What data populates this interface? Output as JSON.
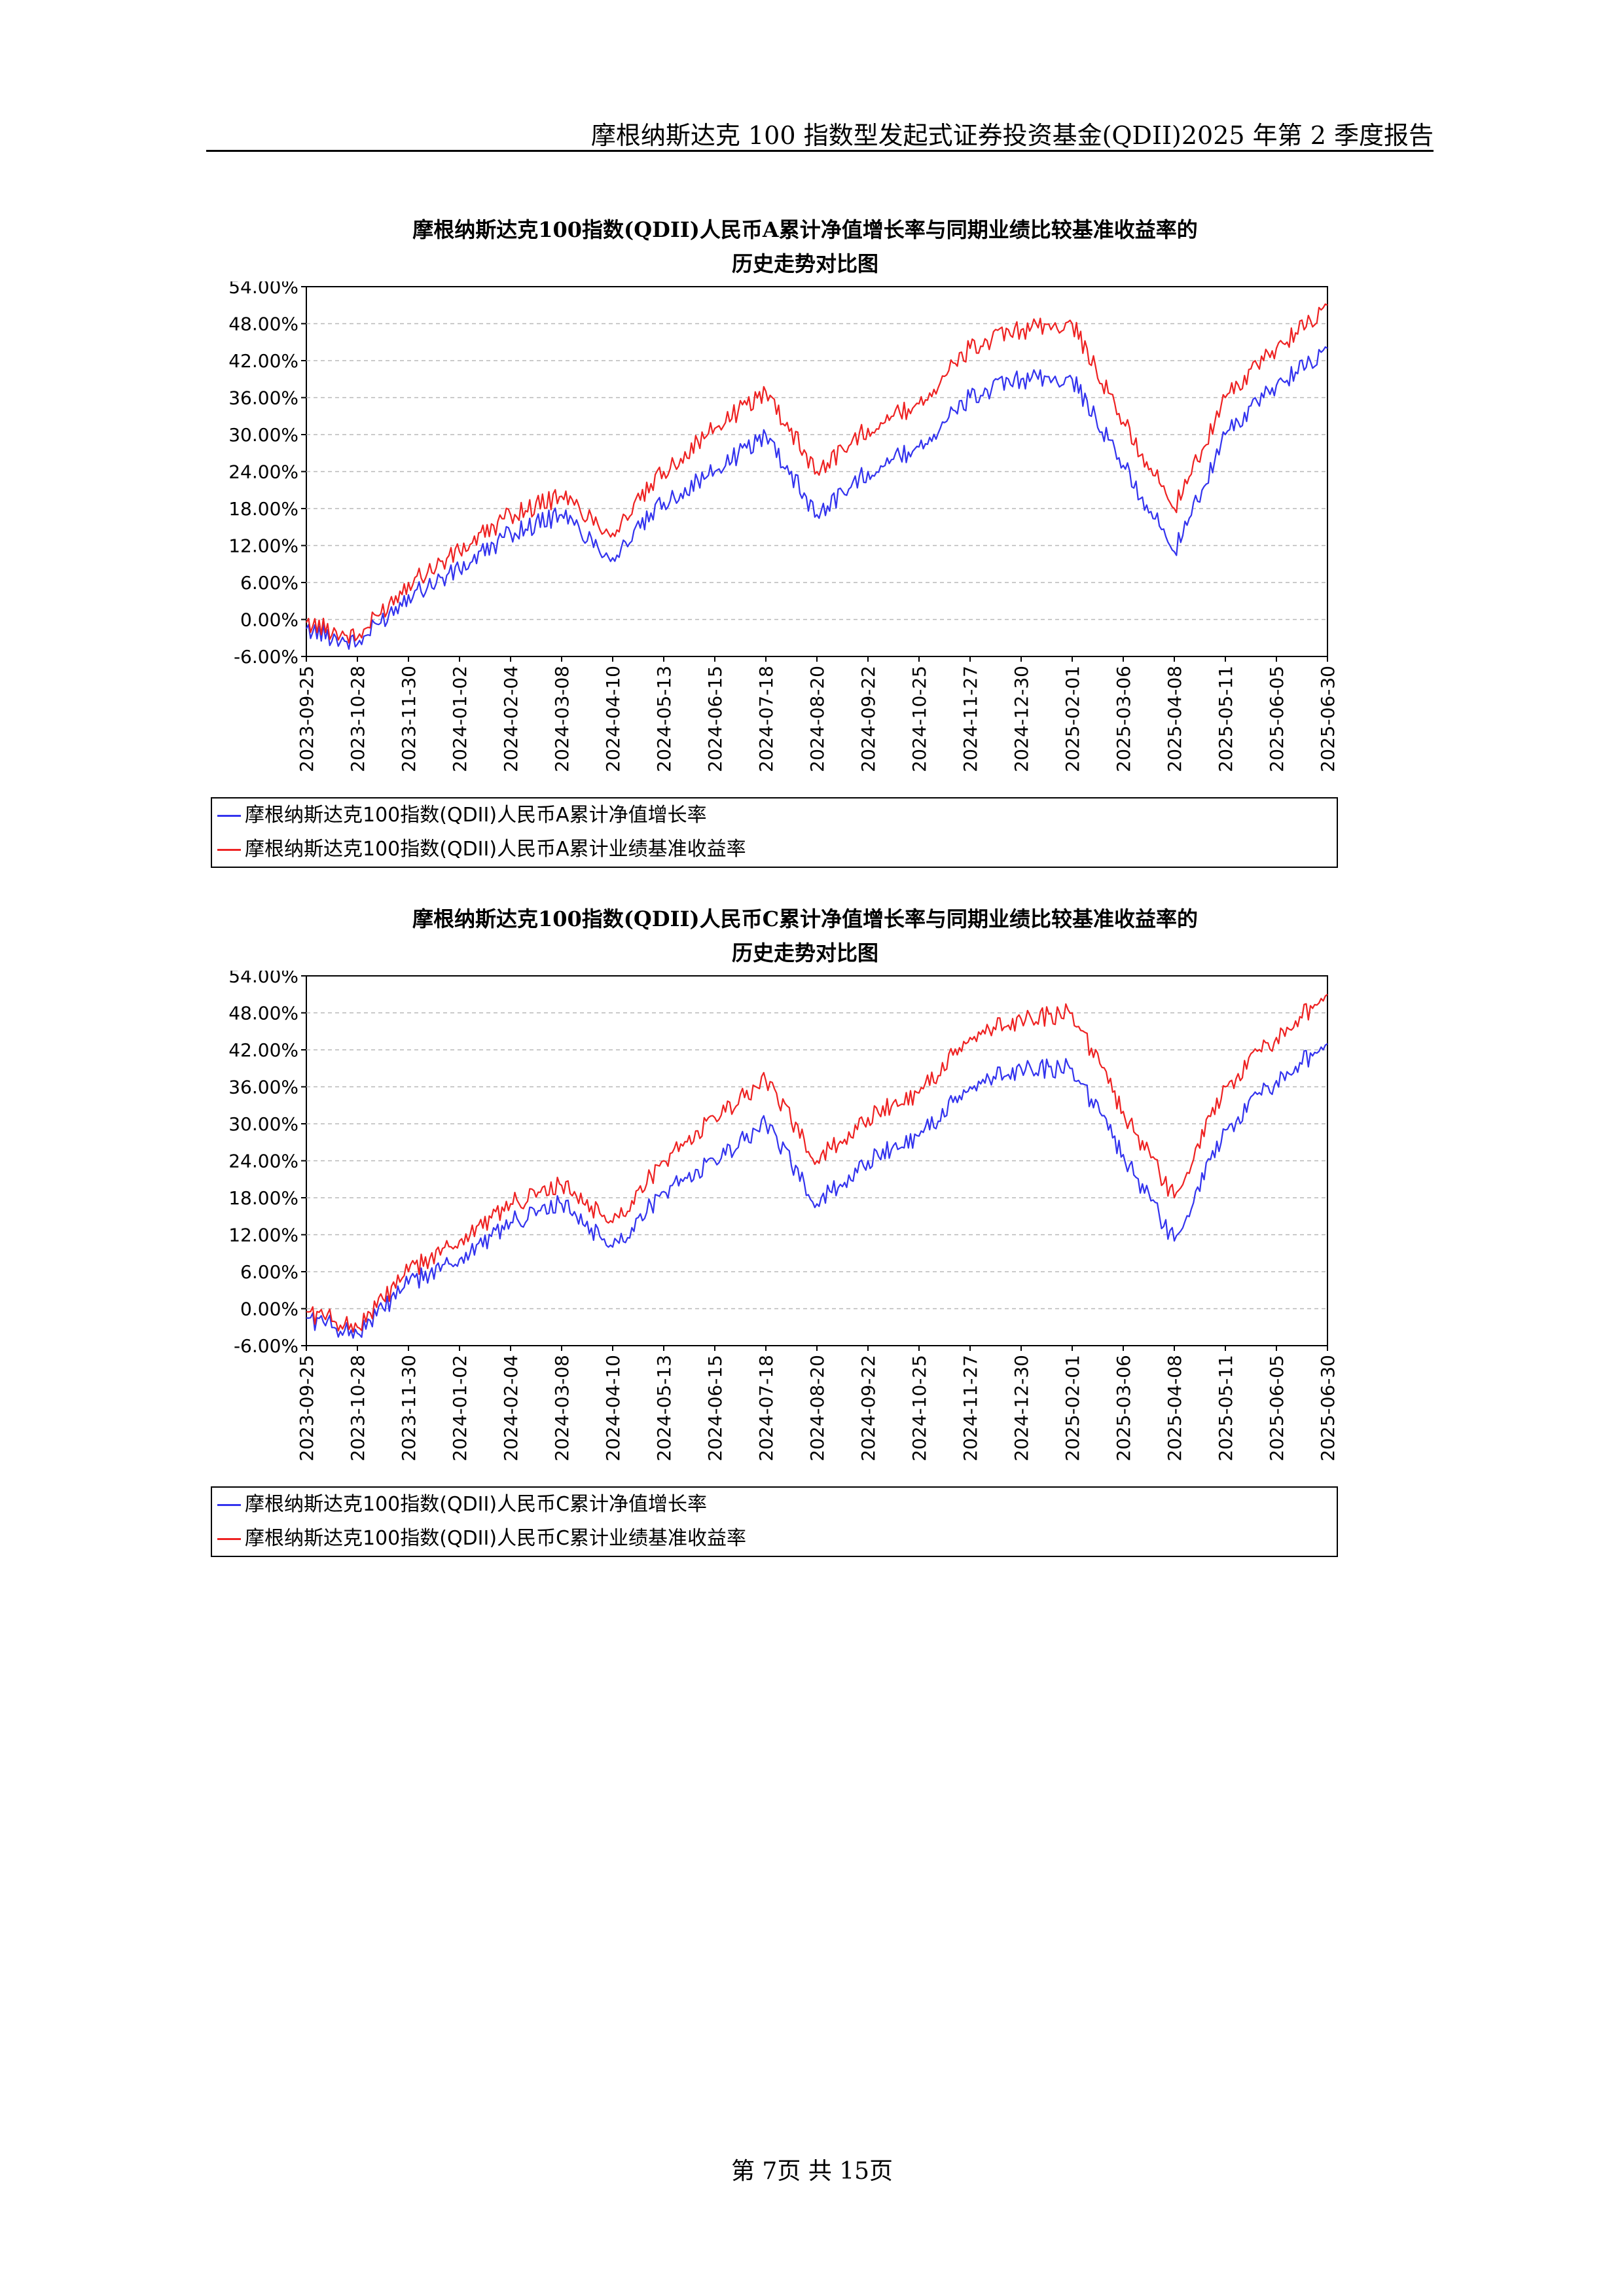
{
  "header": {
    "text": "摩根纳斯达克 100 指数型发起式证券投资基金(QDII)2025 年第 2 季度报告"
  },
  "footer": {
    "text": "第 7页 共 15页"
  },
  "colors": {
    "nav": "#3333ee",
    "benchmark": "#ee2222",
    "grid": "#bbbbbb"
  },
  "charts": [
    {
      "title_line1": "摩根纳斯达克100指数(QDII)人民币A累计净值增长率与同期业绩比较基准收益率的",
      "title_line2": "历史走势对比图",
      "legend": [
        "摩根纳斯达克100指数(QDII)人民币A累计净值增长率",
        "摩根纳斯达克100指数(QDII)人民币A累计业绩基准收益率"
      ]
    },
    {
      "title_line1": "摩根纳斯达克100指数(QDII)人民币C累计净值增长率与同期业绩比较基准收益率的",
      "title_line2": "历史走势对比图",
      "legend": [
        "摩根纳斯达克100指数(QDII)人民币C累计净值增长率",
        "摩根纳斯达克100指数(QDII)人民币C累计业绩基准收益率"
      ]
    }
  ],
  "chart_data": [
    {
      "type": "line",
      "ylim": [
        -6,
        54
      ],
      "yticks": [
        "54.00%",
        "48.00%",
        "42.00%",
        "36.00%",
        "30.00%",
        "24.00%",
        "18.00%",
        "12.00%",
        "6.00%",
        "0.00%",
        "-6.00%"
      ],
      "ytick_values": [
        54,
        48,
        42,
        36,
        30,
        24,
        18,
        12,
        6,
        0,
        -6
      ],
      "x": [
        "2023-09-25",
        "2023-10-28",
        "2023-11-30",
        "2024-01-02",
        "2024-02-04",
        "2024-03-08",
        "2024-04-10",
        "2024-05-13",
        "2024-06-15",
        "2024-07-18",
        "2024-08-20",
        "2024-09-22",
        "2024-10-25",
        "2024-11-27",
        "2024-12-30",
        "2025-02-01",
        "2025-03-06",
        "2025-04-08",
        "2025-05-11",
        "2025-06-05",
        "2025-06-30"
      ],
      "grid": true,
      "legend_position": "bottom",
      "series": [
        {
          "name": "摩根纳斯达克100指数(QDII)人民币A累计净值增长率",
          "color": "#3333ee",
          "values": [
            -1.5,
            -4.0,
            4.0,
            8.0,
            14.0,
            17.0,
            10.0,
            19.0,
            24.0,
            30.0,
            17.0,
            24.0,
            28.0,
            36.0,
            39.0,
            39.0,
            25.0,
            11.0,
            30.0,
            38.0,
            44.0
          ]
        },
        {
          "name": "摩根纳斯达克100指数(QDII)人民币A累计业绩基准收益率",
          "color": "#ee2222",
          "values": [
            -0.5,
            -3.0,
            6.0,
            11.0,
            17.0,
            20.0,
            14.0,
            24.0,
            31.0,
            37.0,
            24.0,
            31.0,
            35.0,
            44.0,
            47.0,
            48.0,
            32.0,
            18.0,
            36.0,
            44.0,
            51.0
          ]
        }
      ]
    },
    {
      "type": "line",
      "ylim": [
        -6,
        54
      ],
      "yticks": [
        "54.00%",
        "48.00%",
        "42.00%",
        "36.00%",
        "30.00%",
        "24.00%",
        "18.00%",
        "12.00%",
        "6.00%",
        "0.00%",
        "-6.00%"
      ],
      "ytick_values": [
        54,
        48,
        42,
        36,
        30,
        24,
        18,
        12,
        6,
        0,
        -6
      ],
      "x": [
        "2023-09-25",
        "2023-10-28",
        "2023-11-30",
        "2024-01-02",
        "2024-02-04",
        "2024-03-08",
        "2024-04-10",
        "2024-05-13",
        "2024-06-15",
        "2024-07-18",
        "2024-08-20",
        "2024-09-22",
        "2024-10-25",
        "2024-11-27",
        "2024-12-30",
        "2025-02-01",
        "2025-03-06",
        "2025-04-08",
        "2025-05-11",
        "2025-06-05",
        "2025-06-30"
      ],
      "grid": true,
      "legend_position": "bottom",
      "series": [
        {
          "name": "摩根纳斯达克100指数(QDII)人民币C累计净值增长率",
          "color": "#3333ee",
          "values": [
            -1.5,
            -4.0,
            4.0,
            8.0,
            14.0,
            17.0,
            10.0,
            19.0,
            24.0,
            30.0,
            17.0,
            24.0,
            28.0,
            36.0,
            39.0,
            39.0,
            25.0,
            11.0,
            29.0,
            37.0,
            43.0
          ]
        },
        {
          "name": "摩根纳斯达克100指数(QDII)人民币C累计业绩基准收益率",
          "color": "#ee2222",
          "values": [
            -0.5,
            -3.0,
            6.0,
            11.0,
            17.0,
            20.0,
            14.0,
            24.0,
            31.0,
            37.0,
            24.0,
            31.0,
            35.0,
            44.0,
            47.0,
            48.0,
            32.0,
            18.0,
            36.0,
            44.0,
            51.0
          ]
        }
      ]
    }
  ]
}
